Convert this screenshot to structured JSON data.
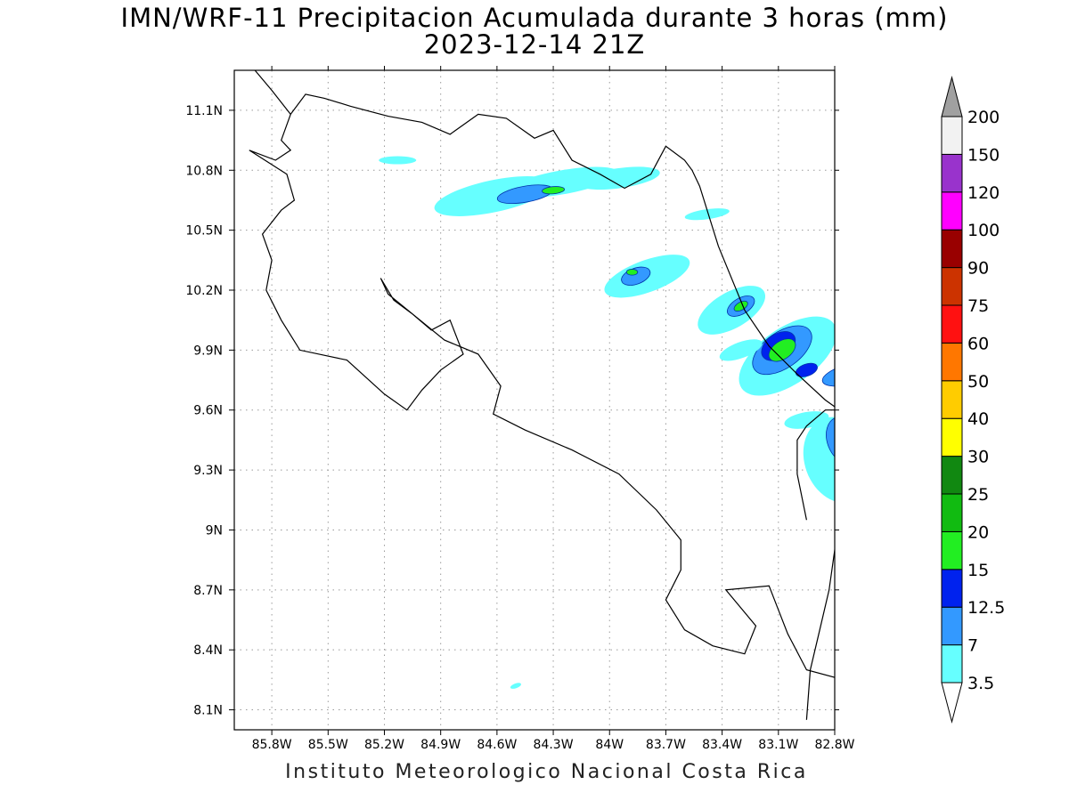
{
  "title_line1": "IMN/WRF-11 Precipitacion Acumulada durante 3 horas (mm)",
  "title_line2": "2023-12-14 21Z",
  "credit": "Instituto Meteorologico Nacional Costa Rica",
  "map": {
    "lon_range": [
      -86.0,
      -82.8
    ],
    "lat_range": [
      8.0,
      11.3
    ],
    "lon_ticks": [
      -85.8,
      -85.5,
      -85.2,
      -84.9,
      -84.6,
      -84.3,
      -84.0,
      -83.7,
      -83.4,
      -83.1,
      -82.8
    ],
    "lon_tick_labels": [
      "85.8W",
      "85.5W",
      "85.2W",
      "84.9W",
      "84.6W",
      "84.3W",
      "84W",
      "83.7W",
      "83.4W",
      "83.1W",
      "82.8W"
    ],
    "lat_ticks": [
      11.1,
      10.8,
      10.5,
      10.2,
      9.9,
      9.6,
      9.3,
      9.0,
      8.7,
      8.4,
      8.1
    ],
    "lat_tick_labels": [
      "11.1N",
      "10.8N",
      "10.5N",
      "10.2N",
      "9.9N",
      "9.6N",
      "9.3N",
      "9N",
      "8.7N",
      "8.4N",
      "8.1N"
    ],
    "grid": "dotted"
  },
  "colorbar": {
    "levels": [
      "3.5",
      "7",
      "12.5",
      "15",
      "20",
      "25",
      "30",
      "40",
      "50",
      "60",
      "75",
      "90",
      "100",
      "120",
      "150",
      "200"
    ],
    "colors": [
      "#66ffff",
      "#3399ff",
      "#0022ee",
      "#22ee22",
      "#11bb11",
      "#118811",
      "#ffff00",
      "#ffcc00",
      "#ff7700",
      "#ff1111",
      "#cc3300",
      "#990000",
      "#ff00ff",
      "#9933cc",
      "#f2f2f2"
    ],
    "over_color": "#a0a0a0",
    "under_color": "#ffffff"
  },
  "precip_cells": [
    {
      "lon": -84.62,
      "lat": 10.67,
      "rx": 0.32,
      "ry": 0.08,
      "rot": -12,
      "level": 0
    },
    {
      "lon": -84.25,
      "lat": 10.74,
      "rx": 0.3,
      "ry": 0.06,
      "rot": -10,
      "level": 0
    },
    {
      "lon": -83.95,
      "lat": 10.76,
      "rx": 0.22,
      "ry": 0.05,
      "rot": -8,
      "level": 0
    },
    {
      "lon": -84.45,
      "lat": 10.68,
      "rx": 0.15,
      "ry": 0.04,
      "rot": -10,
      "level": 1
    },
    {
      "lon": -84.3,
      "lat": 10.7,
      "rx": 0.06,
      "ry": 0.018,
      "rot": -5,
      "level": 3
    },
    {
      "lon": -85.13,
      "lat": 10.85,
      "rx": 0.1,
      "ry": 0.02,
      "rot": 0,
      "level": 0
    },
    {
      "lon": -83.48,
      "lat": 10.58,
      "rx": 0.12,
      "ry": 0.025,
      "rot": -8,
      "level": 0
    },
    {
      "lon": -83.8,
      "lat": 10.27,
      "rx": 0.24,
      "ry": 0.08,
      "rot": -20,
      "level": 0
    },
    {
      "lon": -83.86,
      "lat": 10.27,
      "rx": 0.08,
      "ry": 0.04,
      "rot": -20,
      "level": 1
    },
    {
      "lon": -83.88,
      "lat": 10.29,
      "rx": 0.03,
      "ry": 0.015,
      "rot": 0,
      "level": 3
    },
    {
      "lon": -83.35,
      "lat": 10.1,
      "rx": 0.2,
      "ry": 0.09,
      "rot": -30,
      "level": 0
    },
    {
      "lon": -83.3,
      "lat": 10.12,
      "rx": 0.08,
      "ry": 0.04,
      "rot": -30,
      "level": 1
    },
    {
      "lon": -83.3,
      "lat": 10.12,
      "rx": 0.04,
      "ry": 0.02,
      "rot": -30,
      "level": 3
    },
    {
      "lon": -83.05,
      "lat": 9.87,
      "rx": 0.3,
      "ry": 0.14,
      "rot": -35,
      "level": 0
    },
    {
      "lon": -83.08,
      "lat": 9.9,
      "rx": 0.18,
      "ry": 0.09,
      "rot": -35,
      "level": 1
    },
    {
      "lon": -83.1,
      "lat": 9.92,
      "rx": 0.1,
      "ry": 0.06,
      "rot": -35,
      "level": 2
    },
    {
      "lon": -83.08,
      "lat": 9.9,
      "rx": 0.08,
      "ry": 0.045,
      "rot": -35,
      "level": 3
    },
    {
      "lon": -82.95,
      "lat": 9.8,
      "rx": 0.06,
      "ry": 0.03,
      "rot": -20,
      "level": 2
    },
    {
      "lon": -82.72,
      "lat": 9.78,
      "rx": 0.15,
      "ry": 0.05,
      "rot": -15,
      "level": 1
    },
    {
      "lon": -82.7,
      "lat": 9.78,
      "rx": 0.06,
      "ry": 0.025,
      "rot": -15,
      "level": 3
    },
    {
      "lon": -82.78,
      "lat": 9.35,
      "rx": 0.18,
      "ry": 0.22,
      "rot": -20,
      "level": 0
    },
    {
      "lon": -82.75,
      "lat": 9.45,
      "rx": 0.09,
      "ry": 0.12,
      "rot": -20,
      "level": 1
    },
    {
      "lon": -82.68,
      "lat": 9.5,
      "rx": 0.03,
      "ry": 0.02,
      "rot": 0,
      "level": 3
    },
    {
      "lon": -83.3,
      "lat": 9.9,
      "rx": 0.12,
      "ry": 0.04,
      "rot": -20,
      "level": 0
    },
    {
      "lon": -82.95,
      "lat": 9.55,
      "rx": 0.12,
      "ry": 0.04,
      "rot": -10,
      "level": 0
    },
    {
      "lon": -84.5,
      "lat": 8.22,
      "rx": 0.03,
      "ry": 0.012,
      "rot": -20,
      "level": 0
    },
    {
      "lon": -82.62,
      "lat": 8.88,
      "rx": 0.02,
      "ry": 0.02,
      "rot": 0,
      "level": 0
    }
  ],
  "coastlines": [
    [
      [
        -85.89,
        11.3
      ],
      [
        -85.8,
        11.2
      ],
      [
        -85.7,
        11.08
      ],
      [
        -85.62,
        11.18
      ],
      [
        -85.52,
        11.16
      ],
      [
        -85.38,
        11.12
      ],
      [
        -85.18,
        11.07
      ],
      [
        -85.0,
        11.04
      ],
      [
        -84.85,
        10.98
      ],
      [
        -84.7,
        11.08
      ],
      [
        -84.55,
        11.06
      ],
      [
        -84.4,
        10.96
      ],
      [
        -84.3,
        11.0
      ],
      [
        -84.2,
        10.85
      ],
      [
        -84.05,
        10.78
      ],
      [
        -83.92,
        10.71
      ],
      [
        -83.78,
        10.78
      ],
      [
        -83.7,
        10.92
      ],
      [
        -83.6,
        10.85
      ],
      [
        -83.56,
        10.8
      ],
      [
        -83.52,
        10.72
      ],
      [
        -83.42,
        10.42
      ],
      [
        -83.28,
        10.1
      ],
      [
        -83.15,
        9.92
      ],
      [
        -83.0,
        9.78
      ],
      [
        -82.85,
        9.65
      ],
      [
        -82.7,
        9.55
      ],
      [
        -82.6,
        9.5
      ]
    ],
    [
      [
        -85.7,
        11.08
      ],
      [
        -85.75,
        10.95
      ],
      [
        -85.7,
        10.9
      ],
      [
        -85.78,
        10.85
      ],
      [
        -85.92,
        10.9
      ],
      [
        -85.72,
        10.78
      ],
      [
        -85.68,
        10.65
      ],
      [
        -85.75,
        10.6
      ],
      [
        -85.85,
        10.48
      ],
      [
        -85.8,
        10.35
      ],
      [
        -85.83,
        10.2
      ],
      [
        -85.75,
        10.05
      ],
      [
        -85.65,
        9.9
      ],
      [
        -85.4,
        9.85
      ],
      [
        -85.2,
        9.68
      ],
      [
        -85.08,
        9.6
      ],
      [
        -85.0,
        9.7
      ],
      [
        -84.9,
        9.8
      ],
      [
        -84.78,
        9.88
      ],
      [
        -84.85,
        10.05
      ],
      [
        -84.95,
        10.0
      ],
      [
        -85.05,
        10.08
      ],
      [
        -85.15,
        10.15
      ],
      [
        -85.22,
        10.26
      ],
      [
        -85.18,
        10.18
      ],
      [
        -84.88,
        9.95
      ],
      [
        -84.7,
        9.88
      ],
      [
        -84.58,
        9.72
      ],
      [
        -84.62,
        9.58
      ],
      [
        -84.45,
        9.5
      ],
      [
        -84.2,
        9.4
      ],
      [
        -83.95,
        9.28
      ],
      [
        -83.75,
        9.1
      ],
      [
        -83.62,
        8.95
      ],
      [
        -83.62,
        8.8
      ],
      [
        -83.7,
        8.65
      ],
      [
        -83.6,
        8.5
      ],
      [
        -83.45,
        8.42
      ],
      [
        -83.28,
        8.38
      ],
      [
        -83.22,
        8.52
      ],
      [
        -83.38,
        8.7
      ],
      [
        -83.15,
        8.72
      ],
      [
        -83.1,
        8.6
      ],
      [
        -83.05,
        8.48
      ],
      [
        -82.95,
        8.3
      ],
      [
        -82.75,
        8.25
      ],
      [
        -82.6,
        8.2
      ]
    ],
    [
      [
        -82.95,
        8.05
      ],
      [
        -82.93,
        8.3
      ],
      [
        -82.88,
        8.5
      ],
      [
        -82.83,
        8.7
      ],
      [
        -82.8,
        8.9
      ],
      [
        -82.78,
        9.05
      ],
      [
        -82.75,
        9.2
      ],
      [
        -82.6,
        9.35
      ]
    ],
    [
      [
        -82.6,
        9.6
      ],
      [
        -82.85,
        9.6
      ],
      [
        -82.95,
        9.52
      ],
      [
        -83.0,
        9.45
      ],
      [
        -83.0,
        9.28
      ],
      [
        -82.95,
        9.05
      ]
    ]
  ]
}
